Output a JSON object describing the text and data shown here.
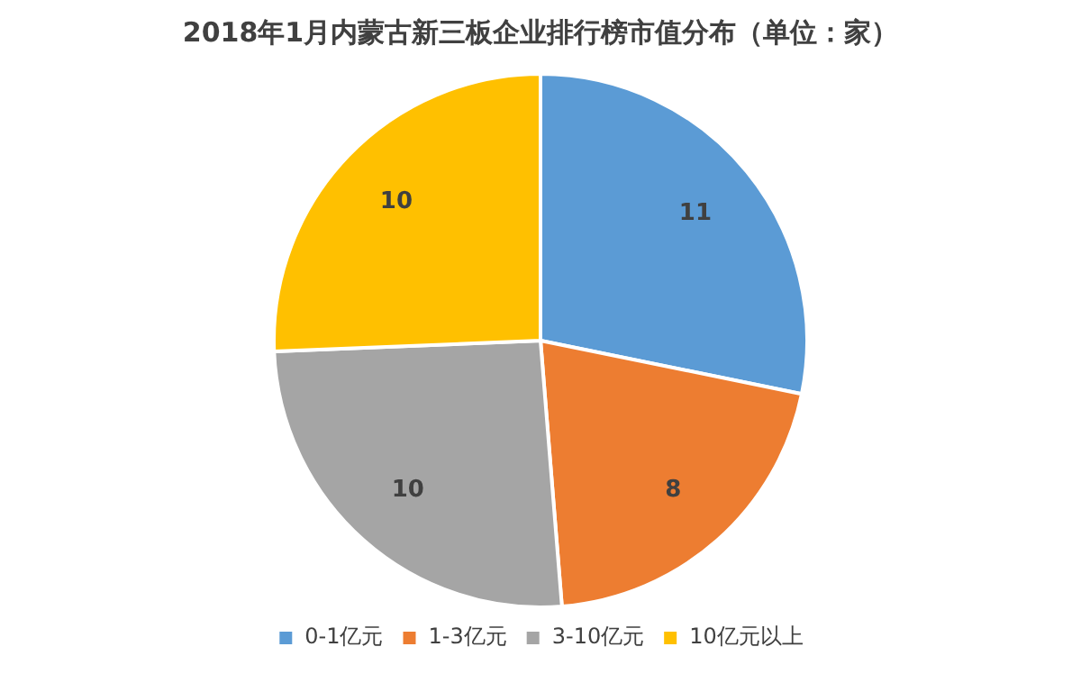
{
  "chart_data": {
    "type": "pie",
    "title": "2018年1月内蒙古新三板企业排行榜市值分布（单位：家）",
    "categories": [
      "0-1亿元",
      "1-3亿元",
      "3-10亿元",
      "10亿元以上"
    ],
    "values": [
      11,
      8,
      10,
      10
    ],
    "colors": [
      "#5b9bd5",
      "#ed7d31",
      "#a5a5a5",
      "#ffc000"
    ],
    "data_labels": true,
    "legend": "bottom"
  }
}
